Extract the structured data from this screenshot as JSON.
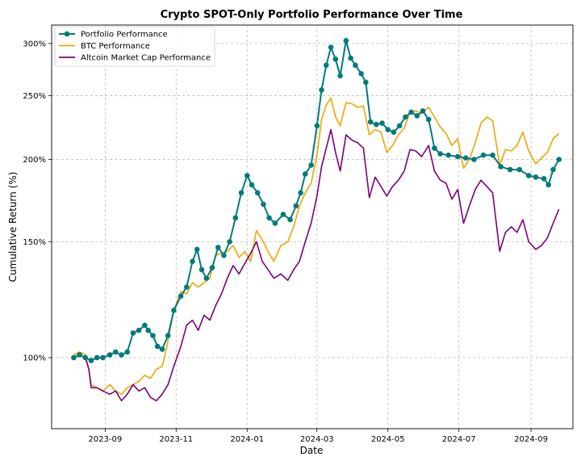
{
  "chart_data": {
    "type": "line",
    "title": "Crypto SPOT-Only Portfolio Performance Over Time",
    "xlabel": "Date",
    "ylabel": "Cumulative Return (%)",
    "yscale": "log",
    "ylim": [
      78,
      320
    ],
    "xlim": [
      "2023-07-17",
      "2024-10-07"
    ],
    "grid": true,
    "legend_position": "top-left",
    "x_ticks": [
      {
        "date": "2023-09-01",
        "label": "2023-09"
      },
      {
        "date": "2023-11-01",
        "label": "2023-11"
      },
      {
        "date": "2024-01-01",
        "label": "2024-01"
      },
      {
        "date": "2024-03-01",
        "label": "2024-03"
      },
      {
        "date": "2024-05-01",
        "label": "2024-05"
      },
      {
        "date": "2024-07-01",
        "label": "2024-07"
      },
      {
        "date": "2024-09-01",
        "label": "2024-09"
      }
    ],
    "y_ticks": [
      {
        "value": 100,
        "label": "100%"
      },
      {
        "value": 150,
        "label": "150%"
      },
      {
        "value": 200,
        "label": "200%"
      },
      {
        "value": 250,
        "label": "250%"
      },
      {
        "value": 300,
        "label": "300%"
      }
    ],
    "series": [
      {
        "name": "Portfolio Performance",
        "color": "#007b7b",
        "marker": "circle",
        "points": [
          [
            "2023-08-05",
            100
          ],
          [
            "2023-08-10",
            101
          ],
          [
            "2023-08-15",
            100
          ],
          [
            "2023-08-20",
            99
          ],
          [
            "2023-08-25",
            100
          ],
          [
            "2023-08-30",
            100
          ],
          [
            "2023-09-05",
            101
          ],
          [
            "2023-09-10",
            102
          ],
          [
            "2023-09-15",
            101
          ],
          [
            "2023-09-20",
            102
          ],
          [
            "2023-09-25",
            109
          ],
          [
            "2023-09-30",
            110
          ],
          [
            "2023-10-05",
            112
          ],
          [
            "2023-10-08",
            110
          ],
          [
            "2023-10-12",
            108
          ],
          [
            "2023-10-16",
            104
          ],
          [
            "2023-10-20",
            103
          ],
          [
            "2023-10-25",
            108
          ],
          [
            "2023-10-30",
            118
          ],
          [
            "2023-11-05",
            124
          ],
          [
            "2023-11-10",
            128
          ],
          [
            "2023-11-15",
            140
          ],
          [
            "2023-11-19",
            146
          ],
          [
            "2023-11-23",
            136
          ],
          [
            "2023-11-27",
            132
          ],
          [
            "2023-12-02",
            137
          ],
          [
            "2023-12-07",
            147
          ],
          [
            "2023-12-12",
            143
          ],
          [
            "2023-12-17",
            150
          ],
          [
            "2023-12-22",
            163
          ],
          [
            "2023-12-27",
            178
          ],
          [
            "2024-01-01",
            189
          ],
          [
            "2024-01-05",
            183
          ],
          [
            "2024-01-10",
            178
          ],
          [
            "2024-01-15",
            171
          ],
          [
            "2024-01-20",
            163
          ],
          [
            "2024-01-25",
            160
          ],
          [
            "2024-02-01",
            165
          ],
          [
            "2024-02-07",
            162
          ],
          [
            "2024-02-12",
            170
          ],
          [
            "2024-02-16",
            178
          ],
          [
            "2024-02-20",
            190
          ],
          [
            "2024-02-25",
            196
          ],
          [
            "2024-03-01",
            225
          ],
          [
            "2024-03-05",
            255
          ],
          [
            "2024-03-09",
            278
          ],
          [
            "2024-03-13",
            296
          ],
          [
            "2024-03-17",
            284
          ],
          [
            "2024-03-21",
            268
          ],
          [
            "2024-03-26",
            303
          ],
          [
            "2024-03-30",
            285
          ],
          [
            "2024-04-03",
            278
          ],
          [
            "2024-04-08",
            270
          ],
          [
            "2024-04-12",
            262
          ],
          [
            "2024-04-16",
            228
          ],
          [
            "2024-04-21",
            226
          ],
          [
            "2024-04-26",
            227
          ],
          [
            "2024-05-01",
            222
          ],
          [
            "2024-05-06",
            220
          ],
          [
            "2024-05-11",
            225
          ],
          [
            "2024-05-16",
            232
          ],
          [
            "2024-05-21",
            236
          ],
          [
            "2024-05-26",
            233
          ],
          [
            "2024-05-31",
            237
          ],
          [
            "2024-06-05",
            230
          ],
          [
            "2024-06-10",
            208
          ],
          [
            "2024-06-15",
            204
          ],
          [
            "2024-06-22",
            203
          ],
          [
            "2024-06-30",
            202
          ],
          [
            "2024-07-07",
            201
          ],
          [
            "2024-07-14",
            200
          ],
          [
            "2024-07-22",
            203
          ],
          [
            "2024-07-30",
            203
          ],
          [
            "2024-08-06",
            195
          ],
          [
            "2024-08-14",
            193
          ],
          [
            "2024-08-22",
            193
          ],
          [
            "2024-08-30",
            189
          ],
          [
            "2024-09-05",
            188
          ],
          [
            "2024-09-12",
            187
          ],
          [
            "2024-09-16",
            183
          ],
          [
            "2024-09-20",
            193
          ],
          [
            "2024-09-25",
            200
          ]
        ]
      },
      {
        "name": "BTC Performance",
        "color": "#f0a500",
        "marker": "none",
        "points": [
          [
            "2023-08-05",
            101
          ],
          [
            "2023-08-10",
            102
          ],
          [
            "2023-08-15",
            101
          ],
          [
            "2023-08-18",
            96
          ],
          [
            "2023-08-20",
            91
          ],
          [
            "2023-08-25",
            90
          ],
          [
            "2023-08-30",
            89
          ],
          [
            "2023-09-05",
            91
          ],
          [
            "2023-09-10",
            89
          ],
          [
            "2023-09-15",
            88
          ],
          [
            "2023-09-20",
            90
          ],
          [
            "2023-09-25",
            91
          ],
          [
            "2023-09-30",
            92
          ],
          [
            "2023-10-05",
            94
          ],
          [
            "2023-10-10",
            93
          ],
          [
            "2023-10-15",
            96
          ],
          [
            "2023-10-20",
            97
          ],
          [
            "2023-10-24",
            104
          ],
          [
            "2023-10-30",
            118
          ],
          [
            "2023-11-05",
            126
          ],
          [
            "2023-11-10",
            125
          ],
          [
            "2023-11-15",
            130
          ],
          [
            "2023-11-20",
            128
          ],
          [
            "2023-11-25",
            130
          ],
          [
            "2023-11-30",
            132
          ],
          [
            "2023-12-05",
            143
          ],
          [
            "2023-12-10",
            144
          ],
          [
            "2023-12-15",
            145
          ],
          [
            "2023-12-20",
            148
          ],
          [
            "2023-12-25",
            142
          ],
          [
            "2023-12-30",
            145
          ],
          [
            "2024-01-04",
            140
          ],
          [
            "2024-01-09",
            156
          ],
          [
            "2024-01-14",
            151
          ],
          [
            "2024-01-19",
            145
          ],
          [
            "2024-01-24",
            140
          ],
          [
            "2024-01-30",
            148
          ],
          [
            "2024-02-05",
            150
          ],
          [
            "2024-02-10",
            158
          ],
          [
            "2024-02-15",
            170
          ],
          [
            "2024-02-20",
            178
          ],
          [
            "2024-02-25",
            184
          ],
          [
            "2024-03-01",
            203
          ],
          [
            "2024-03-05",
            230
          ],
          [
            "2024-03-09",
            242
          ],
          [
            "2024-03-13",
            248
          ],
          [
            "2024-03-17",
            232
          ],
          [
            "2024-03-21",
            225
          ],
          [
            "2024-03-26",
            244
          ],
          [
            "2024-03-31",
            243
          ],
          [
            "2024-04-05",
            240
          ],
          [
            "2024-04-10",
            241
          ],
          [
            "2024-04-15",
            218
          ],
          [
            "2024-04-20",
            222
          ],
          [
            "2024-04-25",
            220
          ],
          [
            "2024-04-30",
            205
          ],
          [
            "2024-05-05",
            210
          ],
          [
            "2024-05-10",
            218
          ],
          [
            "2024-05-15",
            223
          ],
          [
            "2024-05-20",
            236
          ],
          [
            "2024-05-25",
            237
          ],
          [
            "2024-05-30",
            235
          ],
          [
            "2024-06-05",
            240
          ],
          [
            "2024-06-10",
            232
          ],
          [
            "2024-06-15",
            224
          ],
          [
            "2024-06-20",
            219
          ],
          [
            "2024-06-25",
            210
          ],
          [
            "2024-06-30",
            215
          ],
          [
            "2024-07-05",
            194
          ],
          [
            "2024-07-10",
            200
          ],
          [
            "2024-07-15",
            212
          ],
          [
            "2024-07-20",
            227
          ],
          [
            "2024-07-25",
            232
          ],
          [
            "2024-07-30",
            229
          ],
          [
            "2024-08-05",
            196
          ],
          [
            "2024-08-10",
            207
          ],
          [
            "2024-08-15",
            206
          ],
          [
            "2024-08-20",
            210
          ],
          [
            "2024-08-25",
            220
          ],
          [
            "2024-08-30",
            206
          ],
          [
            "2024-09-05",
            197
          ],
          [
            "2024-09-10",
            201
          ],
          [
            "2024-09-15",
            205
          ],
          [
            "2024-09-20",
            215
          ],
          [
            "2024-09-25",
            219
          ]
        ]
      },
      {
        "name": "Altcoin Market Cap Performance",
        "color": "#7b007b",
        "marker": "none",
        "points": [
          [
            "2023-08-05",
            100
          ],
          [
            "2023-08-10",
            101
          ],
          [
            "2023-08-15",
            100
          ],
          [
            "2023-08-18",
            96
          ],
          [
            "2023-08-20",
            90
          ],
          [
            "2023-08-25",
            90
          ],
          [
            "2023-08-30",
            89
          ],
          [
            "2023-09-05",
            88
          ],
          [
            "2023-09-10",
            89
          ],
          [
            "2023-09-15",
            86
          ],
          [
            "2023-09-20",
            88
          ],
          [
            "2023-09-25",
            91
          ],
          [
            "2023-09-30",
            89
          ],
          [
            "2023-10-05",
            90
          ],
          [
            "2023-10-10",
            87
          ],
          [
            "2023-10-15",
            86
          ],
          [
            "2023-10-20",
            88
          ],
          [
            "2023-10-25",
            91
          ],
          [
            "2023-10-30",
            97
          ],
          [
            "2023-11-05",
            104
          ],
          [
            "2023-11-10",
            112
          ],
          [
            "2023-11-15",
            114
          ],
          [
            "2023-11-20",
            110
          ],
          [
            "2023-11-25",
            116
          ],
          [
            "2023-11-30",
            114
          ],
          [
            "2023-12-05",
            120
          ],
          [
            "2023-12-10",
            125
          ],
          [
            "2023-12-15",
            132
          ],
          [
            "2023-12-20",
            138
          ],
          [
            "2023-12-25",
            134
          ],
          [
            "2023-12-30",
            139
          ],
          [
            "2024-01-04",
            144
          ],
          [
            "2024-01-09",
            150
          ],
          [
            "2024-01-14",
            140
          ],
          [
            "2024-01-19",
            136
          ],
          [
            "2024-01-24",
            132
          ],
          [
            "2024-01-30",
            134
          ],
          [
            "2024-02-05",
            131
          ],
          [
            "2024-02-10",
            136
          ],
          [
            "2024-02-15",
            140
          ],
          [
            "2024-02-20",
            150
          ],
          [
            "2024-02-25",
            160
          ],
          [
            "2024-03-01",
            176
          ],
          [
            "2024-03-05",
            195
          ],
          [
            "2024-03-09",
            208
          ],
          [
            "2024-03-13",
            222
          ],
          [
            "2024-03-17",
            205
          ],
          [
            "2024-03-21",
            192
          ],
          [
            "2024-03-26",
            218
          ],
          [
            "2024-03-31",
            214
          ],
          [
            "2024-04-05",
            212
          ],
          [
            "2024-04-10",
            208
          ],
          [
            "2024-04-15",
            175
          ],
          [
            "2024-04-20",
            188
          ],
          [
            "2024-04-25",
            182
          ],
          [
            "2024-04-30",
            176
          ],
          [
            "2024-05-05",
            182
          ],
          [
            "2024-05-10",
            186
          ],
          [
            "2024-05-15",
            192
          ],
          [
            "2024-05-20",
            207
          ],
          [
            "2024-05-25",
            206
          ],
          [
            "2024-05-30",
            202
          ],
          [
            "2024-06-05",
            210
          ],
          [
            "2024-06-10",
            192
          ],
          [
            "2024-06-15",
            186
          ],
          [
            "2024-06-20",
            184
          ],
          [
            "2024-06-25",
            174
          ],
          [
            "2024-06-30",
            180
          ],
          [
            "2024-07-05",
            160
          ],
          [
            "2024-07-10",
            170
          ],
          [
            "2024-07-15",
            180
          ],
          [
            "2024-07-20",
            186
          ],
          [
            "2024-07-25",
            182
          ],
          [
            "2024-07-30",
            178
          ],
          [
            "2024-08-05",
            145
          ],
          [
            "2024-08-10",
            155
          ],
          [
            "2024-08-15",
            158
          ],
          [
            "2024-08-20",
            155
          ],
          [
            "2024-08-25",
            162
          ],
          [
            "2024-08-30",
            150
          ],
          [
            "2024-09-05",
            146
          ],
          [
            "2024-09-10",
            148
          ],
          [
            "2024-09-15",
            152
          ],
          [
            "2024-09-20",
            160
          ],
          [
            "2024-09-25",
            168
          ]
        ]
      }
    ]
  }
}
